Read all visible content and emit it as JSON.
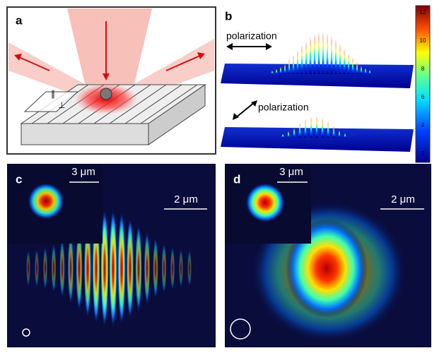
{
  "panel_a": {
    "label": "a",
    "parallel_symbol": "∥",
    "perpendicular_symbol": "⊥"
  },
  "panel_b": {
    "label": "b",
    "polarization_top": "polarization",
    "polarization_bottom": "polarization",
    "colorbar_ticks": [
      "12",
      "10",
      "8",
      "6",
      "4",
      "2"
    ]
  },
  "panel_c": {
    "label": "c",
    "inset_scale": "3 μm",
    "main_scale": "2 μm"
  },
  "panel_d": {
    "label": "d",
    "inset_scale": "3 μm",
    "main_scale": "2 μm"
  }
}
